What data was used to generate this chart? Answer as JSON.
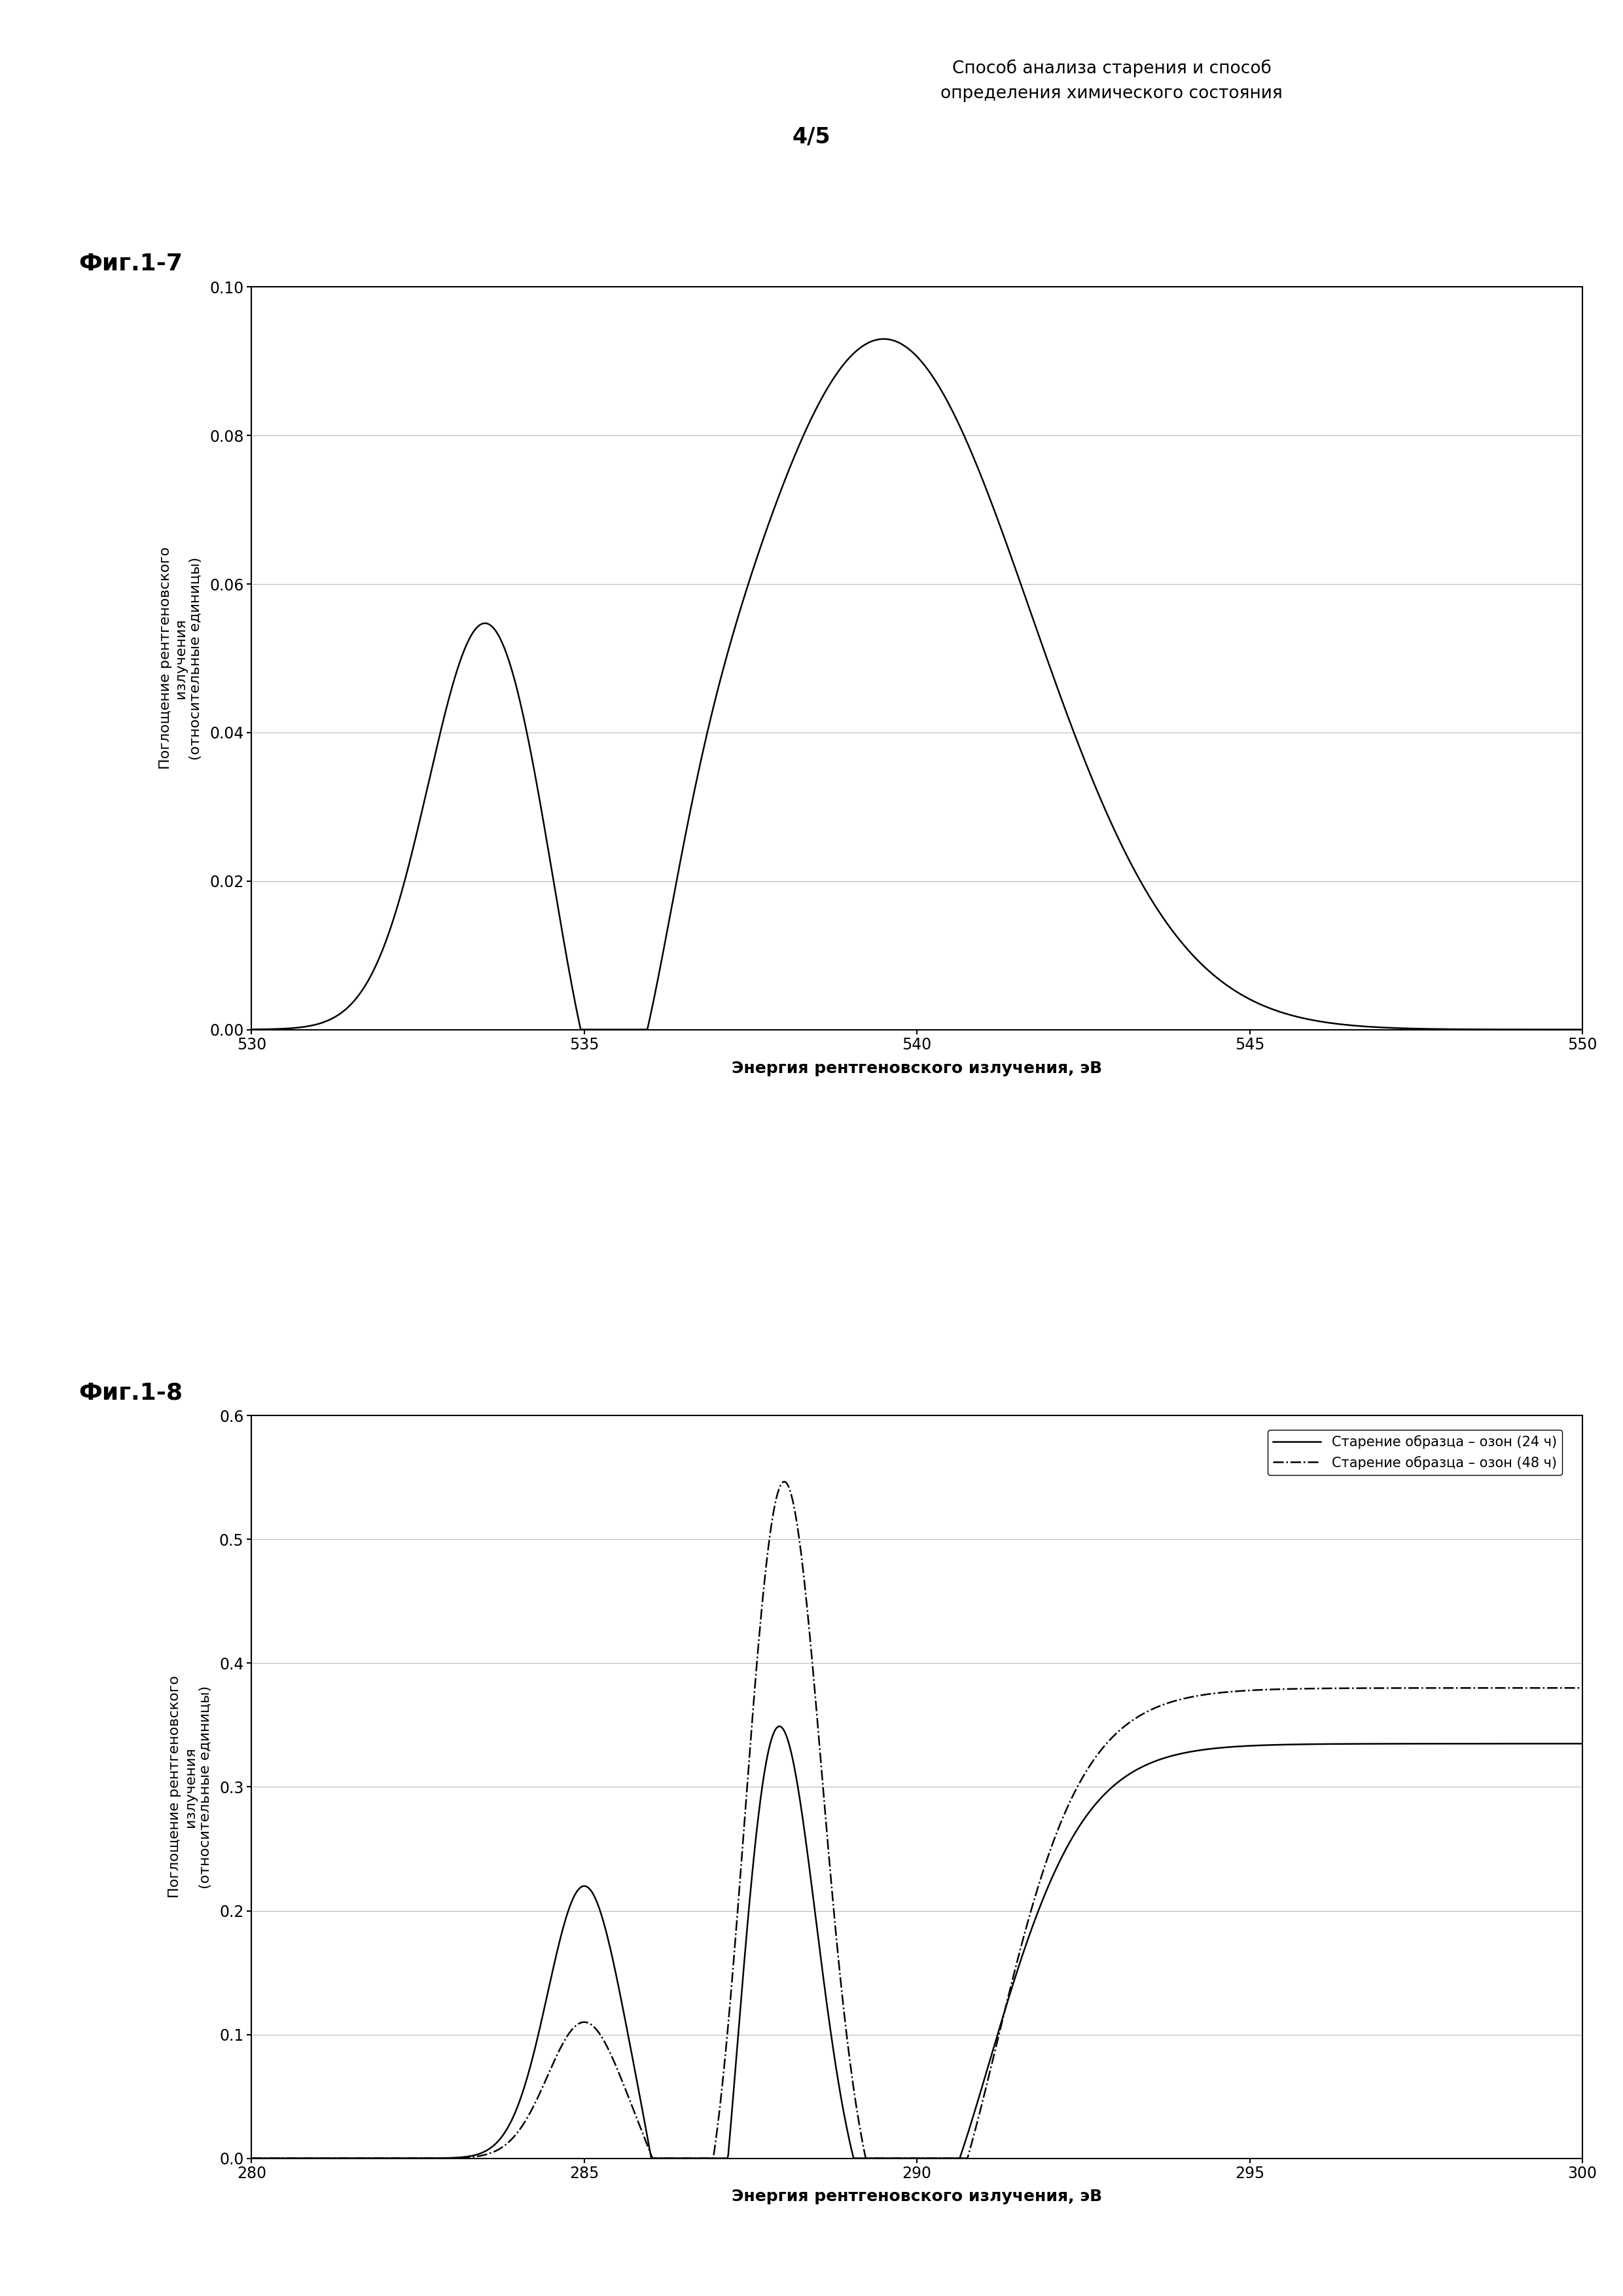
{
  "header_line1": "Способ анализа старения и способ",
  "header_line2": "определения химического состояния",
  "page_number": "4/5",
  "fig1_label": "Фиг.1-7",
  "fig2_label": "Фиг.1-8",
  "fig1_xlabel": "Энергия рентгеновского излучения, эВ",
  "fig1_ylabel": "Поглощение рентгеновского\nизлучения\n(относительные единицы)",
  "fig1_xlim": [
    530,
    550
  ],
  "fig1_ylim": [
    0,
    0.1
  ],
  "fig1_xticks": [
    530,
    535,
    540,
    545,
    550
  ],
  "fig1_yticks": [
    0,
    0.02,
    0.04,
    0.06,
    0.08,
    0.1
  ],
  "fig2_xlabel": "Энергия рентгеновского излучения, эВ",
  "fig2_ylabel": "Поглощение рентгеновского\nизлучения\n(относительные единицы)",
  "fig2_xlim": [
    280,
    300
  ],
  "fig2_ylim": [
    0,
    0.6
  ],
  "fig2_xticks": [
    280,
    285,
    290,
    295,
    300
  ],
  "fig2_yticks": [
    0,
    0.1,
    0.2,
    0.3,
    0.4,
    0.5,
    0.6
  ],
  "legend_label1": "Старение образца – озон (24 ч)",
  "legend_label2": "Старение образца – озон (48 ч)",
  "background_color": "#ffffff",
  "line_color": "#000000"
}
